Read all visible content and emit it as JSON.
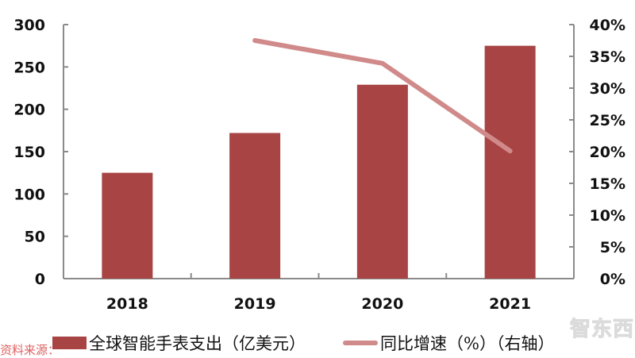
{
  "chart_data": {
    "type": "bar",
    "title": "",
    "xlabel": "",
    "ylabel": "",
    "categories": [
      "2018",
      "2019",
      "2020",
      "2021"
    ],
    "series": [
      {
        "name": "全球智能手表支出（亿美元）",
        "type": "bar",
        "axis": "left",
        "color": "#A84444",
        "values": [
          125,
          172,
          229,
          275
        ]
      },
      {
        "name": "同比增速（%）（右轴）",
        "type": "line",
        "axis": "right",
        "color": "#D08A8A",
        "values": [
          null,
          37.5,
          33.9,
          20.1
        ]
      }
    ],
    "y_left": {
      "ylim": [
        0,
        300
      ],
      "ticks": [
        "0",
        "50",
        "100",
        "150",
        "200",
        "250",
        "300"
      ]
    },
    "y_right": {
      "ylim": [
        0,
        40
      ],
      "ticks": [
        "0%",
        "5%",
        "10%",
        "15%",
        "20%",
        "25%",
        "30%",
        "35%",
        "40%"
      ]
    },
    "grid": false,
    "legend_position": "bottom"
  },
  "legend": {
    "bar_label": "全球智能手表支出（亿美元）",
    "line_label": "同比增速（%）（右轴）"
  },
  "footer": {
    "source_partial": "资料来源：",
    "watermark": "智东西"
  }
}
